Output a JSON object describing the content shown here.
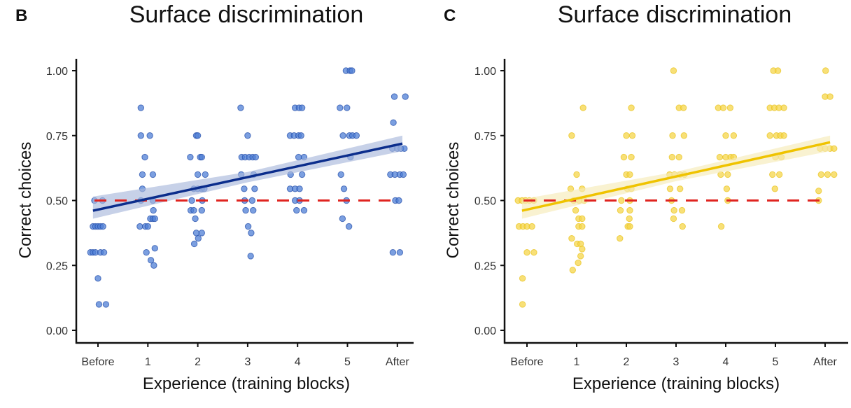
{
  "chart_data": [
    {
      "panel_label": "B",
      "type": "scatter",
      "title": "Surface discrimination",
      "xlabel": "Experience (training blocks)",
      "ylabel": "Correct choices",
      "categories": [
        "Before",
        "1",
        "2",
        "3",
        "4",
        "5",
        "After"
      ],
      "yticks": [
        "0.00",
        "0.25",
        "0.50",
        "0.75",
        "1.00"
      ],
      "ylim": [
        0,
        1
      ],
      "grid": false,
      "colors": {
        "points": "#4f7fd6",
        "point_edge": "#1f4aa8",
        "fit": "#0b2d8c",
        "band": "#a9b8dc",
        "reference": "#e02420"
      },
      "reference_line": {
        "y": 0.5,
        "style": "dashed"
      },
      "fit": {
        "start": 0.465,
        "end": 0.715,
        "band_start": [
          0.43,
          0.515
        ],
        "band_mid_halfwidth": 0.02,
        "band_end": [
          0.69,
          0.75
        ]
      },
      "points_by_category": [
        [
          [
            -0.07,
            0.5
          ],
          [
            0.09,
            0.5
          ],
          [
            -0.1,
            0.4
          ],
          [
            -0.05,
            0.4
          ],
          [
            0,
            0.4
          ],
          [
            0.05,
            0.4
          ],
          [
            0.1,
            0.4
          ],
          [
            -0.15,
            0.3
          ],
          [
            -0.1,
            0.3
          ],
          [
            -0.05,
            0.3
          ],
          [
            0.05,
            0.3
          ],
          [
            0.12,
            0.3
          ],
          [
            0,
            0.2
          ],
          [
            0.02,
            0.1
          ],
          [
            0.16,
            0.1
          ]
        ],
        [
          [
            -0.14,
            0.857
          ],
          [
            -0.14,
            0.75
          ],
          [
            0.04,
            0.75
          ],
          [
            -0.06,
            0.667
          ],
          [
            -0.11,
            0.6
          ],
          [
            0.1,
            0.6
          ],
          [
            -0.11,
            0.545
          ],
          [
            -0.14,
            0.5
          ],
          [
            0.1,
            0.5
          ],
          [
            0.11,
            0.462
          ],
          [
            0.05,
            0.43
          ],
          [
            0.1,
            0.43
          ],
          [
            0.14,
            0.43
          ],
          [
            -0.16,
            0.4
          ],
          [
            -0.05,
            0.4
          ],
          [
            0,
            0.4
          ],
          [
            0.14,
            0.316
          ],
          [
            -0.03,
            0.3
          ],
          [
            0.06,
            0.27
          ],
          [
            0.12,
            0.25
          ]
        ],
        [
          [
            -0.03,
            0.75
          ],
          [
            0,
            0.75
          ],
          [
            -0.15,
            0.667
          ],
          [
            0.05,
            0.667
          ],
          [
            0.08,
            0.667
          ],
          [
            0,
            0.6
          ],
          [
            0.15,
            0.6
          ],
          [
            -0.08,
            0.545
          ],
          [
            0,
            0.545
          ],
          [
            0.08,
            0.545
          ],
          [
            0.13,
            0.545
          ],
          [
            -0.12,
            0.5
          ],
          [
            0.09,
            0.5
          ],
          [
            -0.14,
            0.462
          ],
          [
            -0.08,
            0.462
          ],
          [
            0.08,
            0.462
          ],
          [
            -0.05,
            0.43
          ],
          [
            -0.03,
            0.375
          ],
          [
            0.08,
            0.375
          ],
          [
            0.01,
            0.354
          ],
          [
            -0.07,
            0.333
          ]
        ],
        [
          [
            -0.14,
            0.857
          ],
          [
            0,
            0.75
          ],
          [
            -0.12,
            0.667
          ],
          [
            -0.05,
            0.667
          ],
          [
            0.03,
            0.667
          ],
          [
            0.1,
            0.667
          ],
          [
            0.16,
            0.667
          ],
          [
            -0.13,
            0.6
          ],
          [
            0.12,
            0.6
          ],
          [
            -0.07,
            0.545
          ],
          [
            0.14,
            0.545
          ],
          [
            -0.06,
            0.5
          ],
          [
            0.09,
            0.5
          ],
          [
            -0.04,
            0.462
          ],
          [
            0.11,
            0.462
          ],
          [
            0.01,
            0.4
          ],
          [
            0.07,
            0.375
          ],
          [
            0.06,
            0.286
          ]
        ],
        [
          [
            -0.05,
            0.857
          ],
          [
            0.03,
            0.857
          ],
          [
            0.09,
            0.857
          ],
          [
            -0.15,
            0.75
          ],
          [
            -0.07,
            0.75
          ],
          [
            0.02,
            0.75
          ],
          [
            0.07,
            0.75
          ],
          [
            0.02,
            0.667
          ],
          [
            0.13,
            0.667
          ],
          [
            -0.14,
            0.6
          ],
          [
            0.09,
            0.6
          ],
          [
            -0.15,
            0.545
          ],
          [
            -0.05,
            0.545
          ],
          [
            0.04,
            0.545
          ],
          [
            -0.05,
            0.5
          ],
          [
            0.04,
            0.5
          ],
          [
            -0.02,
            0.462
          ],
          [
            0.13,
            0.462
          ]
        ],
        [
          [
            -0.03,
            1.0
          ],
          [
            0.05,
            1.0
          ],
          [
            0.09,
            1.0
          ],
          [
            -0.15,
            0.857
          ],
          [
            -0.01,
            0.857
          ],
          [
            -0.09,
            0.75
          ],
          [
            0.04,
            0.75
          ],
          [
            0.1,
            0.75
          ],
          [
            0.18,
            0.75
          ],
          [
            0.06,
            0.667
          ],
          [
            -0.13,
            0.6
          ],
          [
            -0.07,
            0.545
          ],
          [
            -0.02,
            0.5
          ],
          [
            -0.1,
            0.43
          ],
          [
            0.03,
            0.4
          ]
        ],
        [
          [
            -0.06,
            0.9
          ],
          [
            0.16,
            0.9
          ],
          [
            -0.08,
            0.8
          ],
          [
            -0.1,
            0.7
          ],
          [
            0,
            0.7
          ],
          [
            0.07,
            0.7
          ],
          [
            0.14,
            0.7
          ],
          [
            -0.14,
            0.6
          ],
          [
            -0.05,
            0.6
          ],
          [
            0.05,
            0.6
          ],
          [
            0.12,
            0.6
          ],
          [
            -0.04,
            0.5
          ],
          [
            0.03,
            0.5
          ],
          [
            -0.09,
            0.3
          ],
          [
            0.05,
            0.3
          ]
        ]
      ]
    },
    {
      "panel_label": "C",
      "type": "scatter",
      "title": "Surface discrimination",
      "xlabel": "Experience (training blocks)",
      "ylabel": "Correct choices",
      "categories": [
        "Before",
        "1",
        "2",
        "3",
        "4",
        "5",
        "After"
      ],
      "yticks": [
        "0.00",
        "0.25",
        "0.50",
        "0.75",
        "1.00"
      ],
      "ylim": [
        0,
        1
      ],
      "grid": false,
      "colors": {
        "points": "#f6d54a",
        "point_edge": "#e8c21a",
        "fit": "#efc300",
        "band": "#f6ebb8",
        "reference": "#e02420"
      },
      "reference_line": {
        "y": 0.5,
        "style": "dashed"
      },
      "fit": {
        "start": 0.465,
        "end": 0.72,
        "band_start": [
          0.43,
          0.505
        ],
        "band_mid_halfwidth": 0.018,
        "band_end": [
          0.69,
          0.75
        ]
      },
      "points_by_category": [
        [
          [
            -0.18,
            0.5
          ],
          [
            -0.1,
            0.5
          ],
          [
            -0.03,
            0.5
          ],
          [
            0.05,
            0.5
          ],
          [
            0.14,
            0.5
          ],
          [
            -0.16,
            0.4
          ],
          [
            -0.08,
            0.4
          ],
          [
            0,
            0.4
          ],
          [
            0.1,
            0.4
          ],
          [
            0,
            0.3
          ],
          [
            0.14,
            0.3
          ],
          [
            -0.09,
            0.2
          ],
          [
            -0.09,
            0.1
          ]
        ],
        [
          [
            0.13,
            0.857
          ],
          [
            -0.1,
            0.75
          ],
          [
            0,
            0.6
          ],
          [
            -0.12,
            0.545
          ],
          [
            0.11,
            0.545
          ],
          [
            -0.06,
            0.5
          ],
          [
            0.05,
            0.5
          ],
          [
            0.15,
            0.5
          ],
          [
            -0.02,
            0.462
          ],
          [
            0.04,
            0.43
          ],
          [
            0.11,
            0.43
          ],
          [
            0.04,
            0.4
          ],
          [
            0.11,
            0.4
          ],
          [
            -0.1,
            0.354
          ],
          [
            0.01,
            0.333
          ],
          [
            0.08,
            0.333
          ],
          [
            0.11,
            0.313
          ],
          [
            0.08,
            0.286
          ],
          [
            0.03,
            0.26
          ],
          [
            -0.08,
            0.232
          ]
        ],
        [
          [
            0.1,
            0.857
          ],
          [
            0,
            0.75
          ],
          [
            0.12,
            0.75
          ],
          [
            -0.05,
            0.667
          ],
          [
            0.1,
            0.667
          ],
          [
            0,
            0.6
          ],
          [
            0.07,
            0.6
          ],
          [
            0.02,
            0.545
          ],
          [
            0.1,
            0.545
          ],
          [
            -0.1,
            0.5
          ],
          [
            0.07,
            0.5
          ],
          [
            -0.12,
            0.462
          ],
          [
            0.07,
            0.462
          ],
          [
            0.06,
            0.43
          ],
          [
            0.03,
            0.4
          ],
          [
            0.07,
            0.4
          ],
          [
            -0.13,
            0.354
          ]
        ],
        [
          [
            -0.05,
            1.0
          ],
          [
            0.06,
            0.857
          ],
          [
            0.15,
            0.857
          ],
          [
            -0.07,
            0.75
          ],
          [
            0.16,
            0.75
          ],
          [
            -0.08,
            0.667
          ],
          [
            0.06,
            0.667
          ],
          [
            -0.13,
            0.6
          ],
          [
            -0.03,
            0.6
          ],
          [
            0.08,
            0.6
          ],
          [
            0.17,
            0.6
          ],
          [
            -0.12,
            0.545
          ],
          [
            0.08,
            0.545
          ],
          [
            -0.09,
            0.5
          ],
          [
            -0.04,
            0.462
          ],
          [
            0.12,
            0.462
          ],
          [
            -0.05,
            0.43
          ],
          [
            0.13,
            0.4
          ]
        ],
        [
          [
            -0.15,
            0.857
          ],
          [
            -0.05,
            0.857
          ],
          [
            0.09,
            0.857
          ],
          [
            0,
            0.75
          ],
          [
            0.16,
            0.75
          ],
          [
            -0.12,
            0.667
          ],
          [
            0,
            0.667
          ],
          [
            0.1,
            0.667
          ],
          [
            0.16,
            0.667
          ],
          [
            -0.1,
            0.6
          ],
          [
            0.04,
            0.6
          ],
          [
            0.02,
            0.545
          ],
          [
            0.04,
            0.5
          ],
          [
            -0.09,
            0.4
          ]
        ],
        [
          [
            -0.04,
            1.0
          ],
          [
            0.05,
            1.0
          ],
          [
            -0.11,
            0.857
          ],
          [
            -0.02,
            0.857
          ],
          [
            0.07,
            0.857
          ],
          [
            0.17,
            0.857
          ],
          [
            -0.11,
            0.75
          ],
          [
            0.02,
            0.75
          ],
          [
            0.1,
            0.75
          ],
          [
            0.17,
            0.75
          ],
          [
            0,
            0.667
          ],
          [
            0.12,
            0.667
          ],
          [
            -0.06,
            0.6
          ],
          [
            0.08,
            0.6
          ],
          [
            -0.01,
            0.545
          ]
        ],
        [
          [
            0.01,
            1.0
          ],
          [
            0,
            0.9
          ],
          [
            0.1,
            0.9
          ],
          [
            -0.1,
            0.7
          ],
          [
            0,
            0.7
          ],
          [
            0.1,
            0.7
          ],
          [
            0.18,
            0.7
          ],
          [
            -0.08,
            0.6
          ],
          [
            0.05,
            0.6
          ],
          [
            0.18,
            0.6
          ],
          [
            -0.13,
            0.537
          ],
          [
            -0.13,
            0.5
          ]
        ]
      ]
    }
  ]
}
